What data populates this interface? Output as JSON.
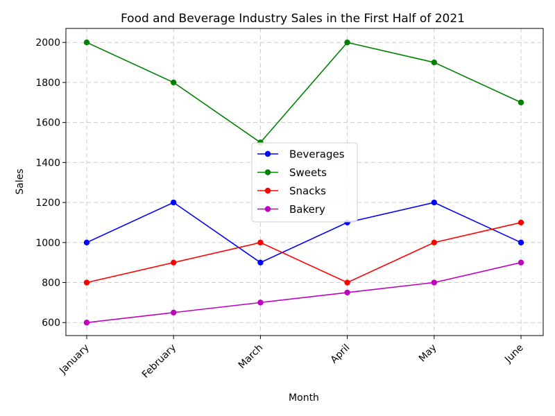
{
  "chart_data": {
    "type": "line",
    "title": "Food and Beverage Industry Sales in the First Half of 2021",
    "xlabel": "Month",
    "ylabel": "Sales",
    "categories": [
      "January",
      "February",
      "March",
      "April",
      "May",
      "June"
    ],
    "yticks": [
      600,
      800,
      1000,
      1200,
      1400,
      1600,
      1800,
      2000
    ],
    "ylim": [
      535,
      2070
    ],
    "grid": true,
    "legend_position": "center",
    "series": [
      {
        "name": "Beverages",
        "color": "#0000ff",
        "values": [
          1000,
          1200,
          900,
          1100,
          1200,
          1000
        ]
      },
      {
        "name": "Sweets",
        "color": "#008000",
        "values": [
          2000,
          1800,
          1500,
          2000,
          1900,
          1700
        ]
      },
      {
        "name": "Snacks",
        "color": "#ff0000",
        "values": [
          800,
          900,
          1000,
          800,
          1000,
          1100
        ]
      },
      {
        "name": "Bakery",
        "color": "#bf00bf",
        "values": [
          600,
          650,
          700,
          750,
          800,
          900
        ]
      }
    ]
  }
}
